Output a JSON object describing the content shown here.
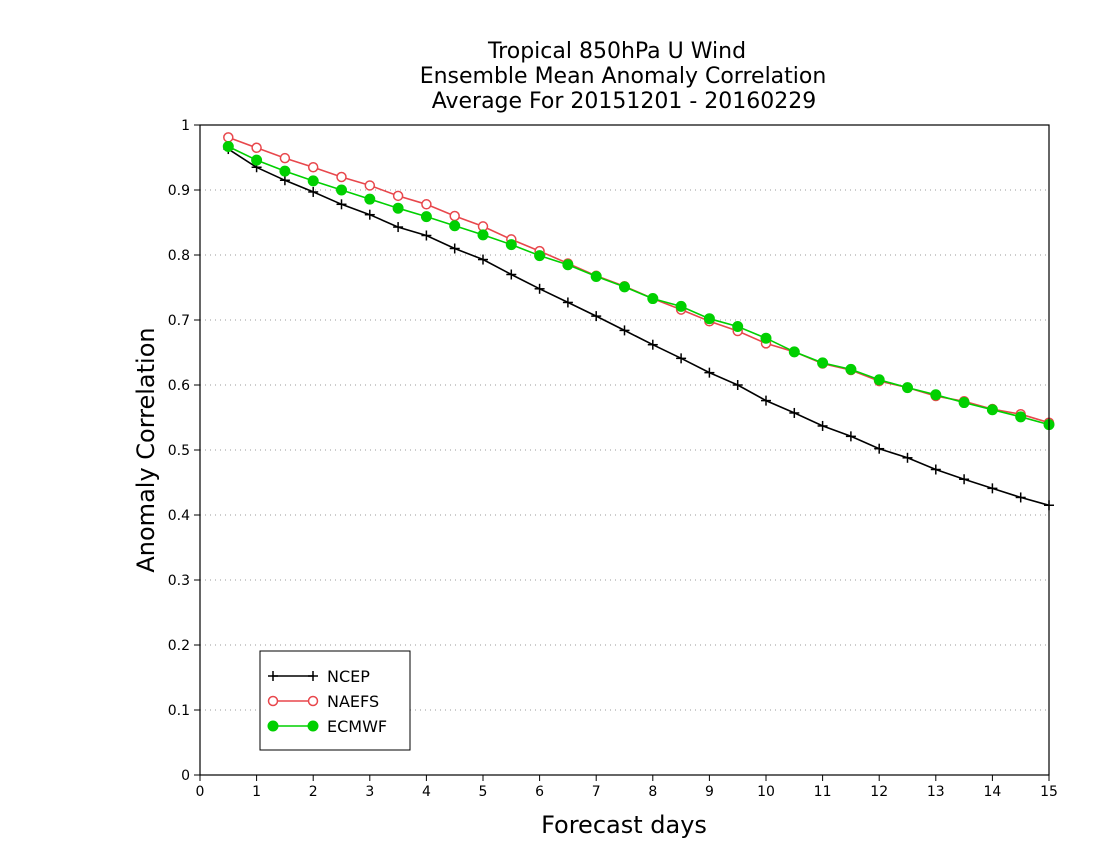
{
  "chart_data": {
    "type": "line",
    "title": [
      "Tropical 850hPa U Wind",
      "Ensemble Mean Anomaly Correlation",
      "Average For 20151201 - 20160229"
    ],
    "xlabel": "Forecast days",
    "ylabel": "Anomaly Correlation",
    "xlim": [
      0,
      15
    ],
    "ylim": [
      0,
      1
    ],
    "xticks": [
      "0",
      "1",
      "2",
      "3",
      "4",
      "5",
      "6",
      "7",
      "8",
      "9",
      "10",
      "11",
      "12",
      "13",
      "14",
      "15"
    ],
    "yticks": [
      "0",
      "0.1",
      "0.2",
      "0.3",
      "0.4",
      "0.5",
      "0.6",
      "0.7",
      "0.8",
      "0.9",
      "1"
    ],
    "grid": "horizontal dotted",
    "legend_position": "bottom-left",
    "x": [
      0.5,
      1,
      1.5,
      2,
      2.5,
      3,
      3.5,
      4,
      4.5,
      5,
      5.5,
      6,
      6.5,
      7,
      7.5,
      8,
      8.5,
      9,
      9.5,
      10,
      10.5,
      11,
      11.5,
      12,
      12.5,
      13,
      13.5,
      14,
      14.5,
      15
    ],
    "series": [
      {
        "name": "NCEP",
        "color": "#000000",
        "marker": "plus",
        "values": [
          0.963,
          0.935,
          0.915,
          0.897,
          0.878,
          0.862,
          0.843,
          0.83,
          0.81,
          0.793,
          0.77,
          0.748,
          0.727,
          0.706,
          0.684,
          0.662,
          0.641,
          0.619,
          0.6,
          0.576,
          0.557,
          0.537,
          0.521,
          0.502,
          0.488,
          0.47,
          0.455,
          0.441,
          0.427,
          0.415
        ]
      },
      {
        "name": "NAEFS",
        "color": "#e8474c",
        "marker": "open-circle",
        "values": [
          0.981,
          0.965,
          0.949,
          0.935,
          0.92,
          0.907,
          0.891,
          0.878,
          0.86,
          0.844,
          0.824,
          0.806,
          0.787,
          0.768,
          0.752,
          0.733,
          0.716,
          0.698,
          0.683,
          0.664,
          0.651,
          0.633,
          0.623,
          0.606,
          0.596,
          0.583,
          0.575,
          0.563,
          0.555,
          0.542
        ]
      },
      {
        "name": "ECMWF",
        "color": "#00d000",
        "marker": "filled-circle",
        "values": [
          0.967,
          0.946,
          0.929,
          0.914,
          0.9,
          0.886,
          0.872,
          0.859,
          0.845,
          0.831,
          0.816,
          0.799,
          0.785,
          0.767,
          0.751,
          0.733,
          0.721,
          0.702,
          0.69,
          0.672,
          0.651,
          0.634,
          0.624,
          0.608,
          0.596,
          0.585,
          0.573,
          0.562,
          0.551,
          0.539
        ]
      }
    ]
  }
}
